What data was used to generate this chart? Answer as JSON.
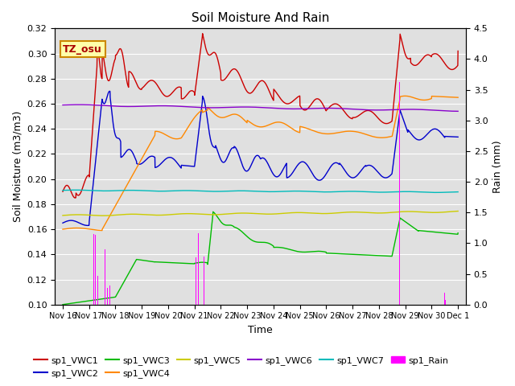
{
  "title": "Soil Moisture And Rain",
  "xlabel": "Time",
  "ylabel_left": "Soil Moisture (m3/m3)",
  "ylabel_right": "Rain (mm)",
  "annotation": "TZ_osu",
  "ylim_left": [
    0.1,
    0.32
  ],
  "ylim_right": [
    0.0,
    4.5
  ],
  "bg_color": "#e0e0e0",
  "series_colors": {
    "sp1_VWC1": "#cc0000",
    "sp1_VWC2": "#0000cc",
    "sp1_VWC3": "#00bb00",
    "sp1_VWC4": "#ff8800",
    "sp1_VWC5": "#cccc00",
    "sp1_VWC6": "#8800cc",
    "sp1_VWC7": "#00bbbb",
    "sp1_Rain": "#ff00ff"
  },
  "x_tick_labels": [
    "Nov 16",
    "Nov 17",
    "Nov 18",
    "Nov 19",
    "Nov 20",
    "Nov 21",
    "Nov 22",
    "Nov 23",
    "Nov 24",
    "Nov 25",
    "Nov 26",
    "Nov 27",
    "Nov 28",
    "Nov 29",
    "Nov 30",
    "Dec 1"
  ],
  "yticks_left": [
    0.1,
    0.12,
    0.14,
    0.16,
    0.18,
    0.2,
    0.22,
    0.24,
    0.26,
    0.28,
    0.3,
    0.32
  ],
  "yticks_right": [
    0.0,
    0.5,
    1.0,
    1.5,
    2.0,
    2.5,
    3.0,
    3.5,
    4.0,
    4.5
  ]
}
